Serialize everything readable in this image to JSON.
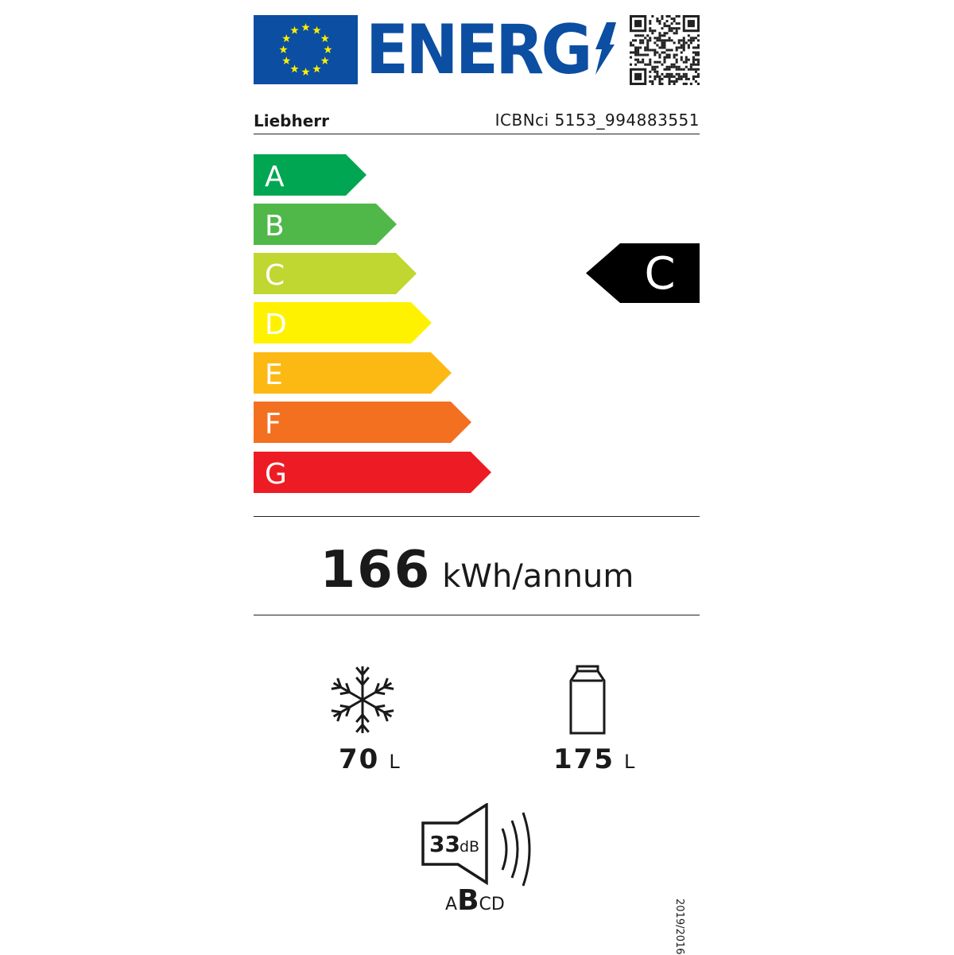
{
  "header": {
    "logo_text": "ENERG",
    "brand": "Liebherr",
    "model": "ICBNci 5153_994883551",
    "flag_color": "#0b4ea2",
    "star_color": "#ffed00"
  },
  "energy_scale": {
    "classes": [
      {
        "letter": "A",
        "color": "#00a651"
      },
      {
        "letter": "B",
        "color": "#50b848"
      },
      {
        "letter": "C",
        "color": "#bfd730"
      },
      {
        "letter": "D",
        "color": "#fff200"
      },
      {
        "letter": "E",
        "color": "#fdb913"
      },
      {
        "letter": "F",
        "color": "#f37021"
      },
      {
        "letter": "G",
        "color": "#ed1c24"
      }
    ],
    "rating": "C"
  },
  "consumption": {
    "value": "166",
    "unit": "kWh/annum"
  },
  "freezer": {
    "icon": "snowflake-icon",
    "value": "70",
    "unit": "L"
  },
  "fridge": {
    "icon": "bottle-icon",
    "value": "175",
    "unit": "L"
  },
  "noise": {
    "value": "33",
    "unit": "dB",
    "classes": [
      "A",
      "B",
      "C",
      "D"
    ],
    "selected": "B"
  },
  "regulation": "2019/2016"
}
